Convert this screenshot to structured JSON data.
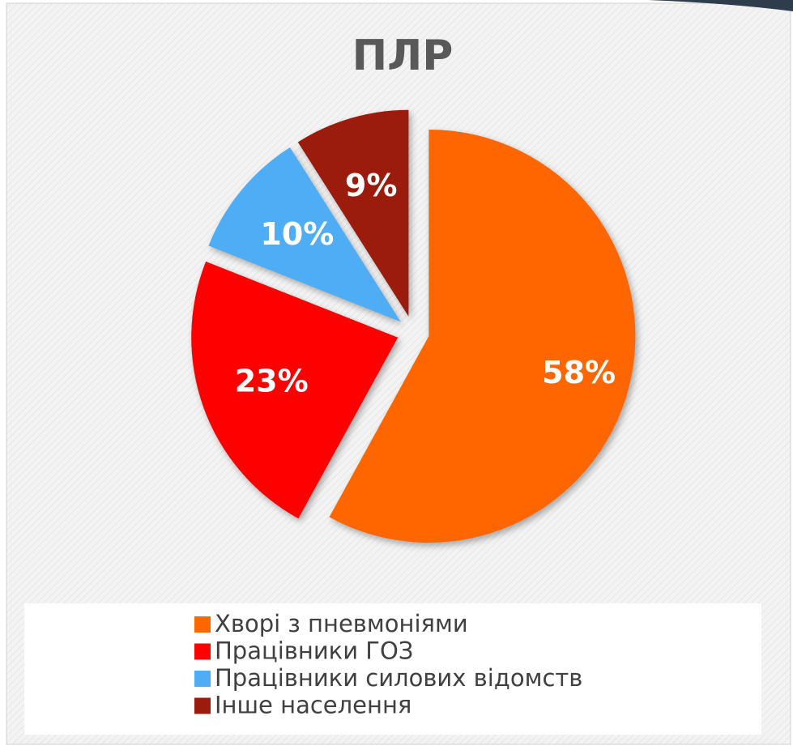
{
  "chart_data": {
    "type": "pie",
    "title": "ПЛР",
    "categories": [
      "Хворі з пневмоніями",
      "Працівники ГОЗ",
      "Працівники силових відомств",
      "Інше населення"
    ],
    "values": [
      58,
      23,
      10,
      9
    ],
    "value_labels": [
      "58%",
      "23%",
      "10%",
      "9%"
    ],
    "colors": [
      "#ff6600",
      "#ff0000",
      "#4fadf5",
      "#9b1c0c"
    ],
    "legend": "bottom"
  }
}
